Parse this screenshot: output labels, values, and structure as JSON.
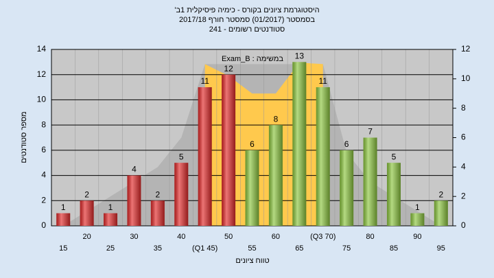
{
  "chart_data": {
    "type": "bar",
    "title": "היסטוגרמת ציונים בקורס - כימיה פיסיקלית 1ב'",
    "subtitle": [
      "בסמסטר (01/2017) סמסטר חורף 2017/18",
      "סטודנטים רשומים - 241"
    ],
    "annotation": "במשימה : Exam_B",
    "x_label": "טווח ציונים",
    "y_label": "מספר סטודנטים",
    "categories": [
      15,
      20,
      25,
      30,
      35,
      40,
      "(Q1 45)",
      50,
      55,
      60,
      65,
      "(Q3 70)",
      75,
      80,
      85,
      90,
      95
    ],
    "values": [
      1,
      2,
      1,
      4,
      2,
      5,
      11,
      12,
      6,
      8,
      13,
      11,
      6,
      7,
      5,
      1,
      2
    ],
    "colors": [
      "#e22a2a",
      "#e22a2a",
      "#e22a2a",
      "#e22a2a",
      "#e22a2a",
      "#e22a2a",
      "#e22a2a",
      "#e22a2a",
      "#8cc63f",
      "#8cc63f",
      "#8cc63f",
      "#8cc63f",
      "#8cc63f",
      "#8cc63f",
      "#8cc63f",
      "#8cc63f",
      "#8cc63f"
    ],
    "areas": [
      {
        "color": "#b4b4b4",
        "axis": "y2",
        "values": [
          0,
          1,
          2,
          3,
          4,
          6,
          11,
          11,
          11,
          11,
          11,
          11,
          5,
          3,
          2,
          1,
          0
        ]
      },
      {
        "color": "#ffc94d",
        "axis": "y2",
        "values": [
          null,
          null,
          null,
          null,
          null,
          null,
          11,
          10.2,
          9,
          9,
          11.1,
          11,
          null,
          null,
          null,
          null,
          null
        ]
      }
    ],
    "ylim": [
      0,
      14
    ],
    "yticks": [
      0,
      2,
      4,
      6,
      8,
      10,
      12,
      14
    ],
    "y2lim": [
      0,
      12
    ],
    "y2ticks": [
      0,
      2,
      4,
      6,
      8,
      10,
      12
    ],
    "grid": true
  }
}
